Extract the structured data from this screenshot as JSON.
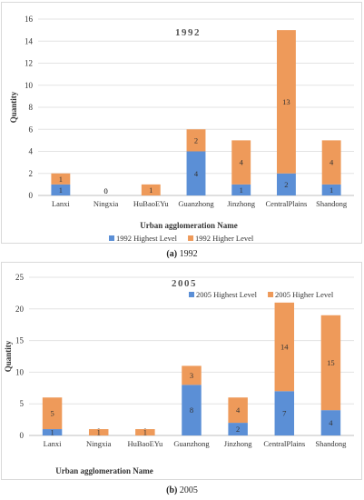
{
  "colors": {
    "highest": "#5b8fd6",
    "higher": "#ee9a5a",
    "grid": "#e3e3e3",
    "axis": "#bfbfbf"
  },
  "captions": {
    "a": {
      "letter": "(a)",
      "text": "1992"
    },
    "b": {
      "letter": "(b)",
      "text": "2005"
    }
  },
  "chart_data": [
    {
      "type": "bar",
      "stacked": true,
      "title": "1992",
      "xlabel": "Urban agglomeration Name",
      "ylabel": "Quantity",
      "ylim": [
        0,
        16
      ],
      "yticks": [
        0,
        2,
        4,
        6,
        8,
        10,
        12,
        14,
        16
      ],
      "grid": true,
      "legend_position": "bottom",
      "categories": [
        "Lanxi",
        "Ningxia",
        "HuBaoEYu",
        "Guanzhong",
        "Jinzhong",
        "CentralPlains",
        "Shandong"
      ],
      "series": [
        {
          "name": "1992 Highest Level",
          "values": [
            1,
            0,
            0,
            4,
            1,
            2,
            1
          ]
        },
        {
          "name": "1992 Higher Level",
          "values": [
            1,
            0,
            1,
            2,
            4,
            13,
            4
          ]
        }
      ]
    },
    {
      "type": "bar",
      "stacked": true,
      "title": "2005",
      "xlabel": "Urban agglomeration Name",
      "ylabel": "Quantity",
      "ylim": [
        0,
        25
      ],
      "yticks": [
        0,
        5,
        10,
        15,
        20,
        25
      ],
      "grid": true,
      "legend_position": "top-right",
      "categories": [
        "Lanxi",
        "Ningxia",
        "HuBaoEYu",
        "Guanzhong",
        "Jinzhong",
        "CentralPlains",
        "Shandong"
      ],
      "series": [
        {
          "name": "2005 Highest Level",
          "values": [
            1,
            0,
            0,
            8,
            2,
            7,
            4
          ]
        },
        {
          "name": "2005 Higher Level",
          "values": [
            5,
            1,
            1,
            3,
            4,
            14,
            15
          ]
        }
      ]
    }
  ]
}
